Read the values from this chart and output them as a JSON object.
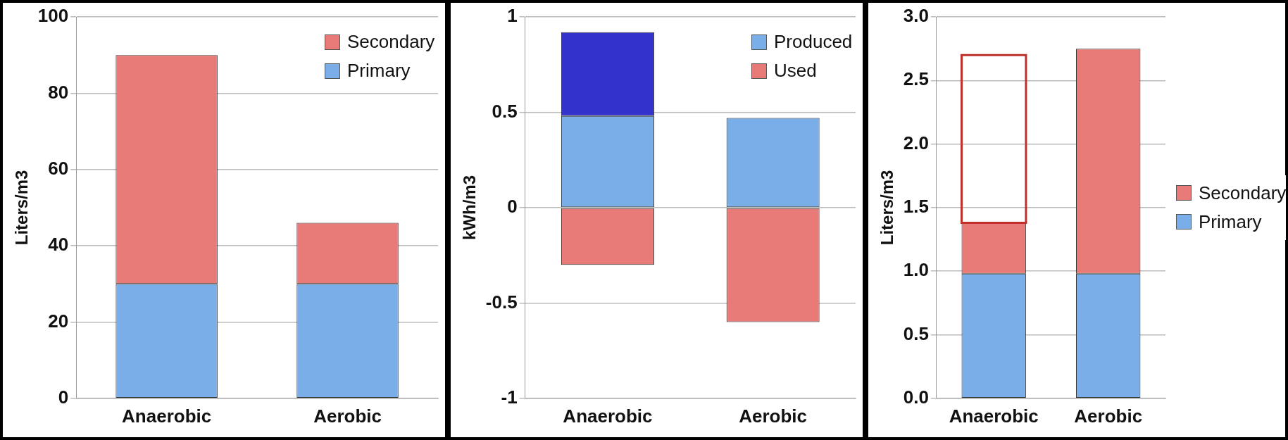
{
  "chart_data": [
    {
      "type": "bar",
      "stacked": true,
      "categories": [
        "Anaerobic",
        "Aerobic"
      ],
      "ylabel": "Liters/m3",
      "ylim": [
        0,
        100
      ],
      "yticks": [
        0,
        20,
        40,
        60,
        80,
        100
      ],
      "grid": "y",
      "legend": "top right",
      "series": [
        {
          "name": "Primary",
          "color": "#7aaee8",
          "values": [
            30,
            30
          ]
        },
        {
          "name": "Secondary",
          "color": "#e87a78",
          "values": [
            60,
            16
          ]
        }
      ]
    },
    {
      "type": "bar",
      "stacked": true,
      "categories": [
        "Anaerobic",
        "Aerobic"
      ],
      "ylabel": "kWh/m3",
      "ylim": [
        -1,
        1
      ],
      "yticks": [
        -1,
        -0.5,
        0,
        0.5,
        1
      ],
      "grid": "y",
      "legend": "top right",
      "series": [
        {
          "name": "Produced",
          "color": "#7aaee8",
          "values": [
            0.48,
            0.47
          ]
        },
        {
          "color": "#3333cc",
          "values": [
            0.44,
            null
          ]
        },
        {
          "name": "Used",
          "color": "#e87a78",
          "values": [
            -0.3,
            -0.6
          ]
        }
      ]
    },
    {
      "type": "bar",
      "stacked": true,
      "categories": [
        "Anaerobic",
        "Aerobic"
      ],
      "ylabel": "Liters/m3",
      "ylim": [
        0,
        3
      ],
      "yticks": [
        {
          "value": 0,
          "label": "0.0"
        },
        {
          "value": 0.5,
          "label": "0.5"
        },
        {
          "value": 1,
          "label": "1.0"
        },
        {
          "value": 1.5,
          "label": "1.5"
        },
        {
          "value": 2,
          "label": "2.0"
        },
        {
          "value": 2.5,
          "label": "2.5"
        },
        {
          "value": 3,
          "label": "3.0"
        }
      ],
      "grid": "y",
      "legend": "right",
      "series": [
        {
          "name": "Primary",
          "color": "#7aaee8",
          "values": [
            0.98,
            0.98
          ]
        },
        {
          "name": "Secondary",
          "color": "#e87a78",
          "values": [
            0.4,
            1.77
          ]
        },
        {
          "color": "#c0302b",
          "line_style": "solid",
          "values": [
            1.32,
            null
          ]
        }
      ]
    }
  ]
}
